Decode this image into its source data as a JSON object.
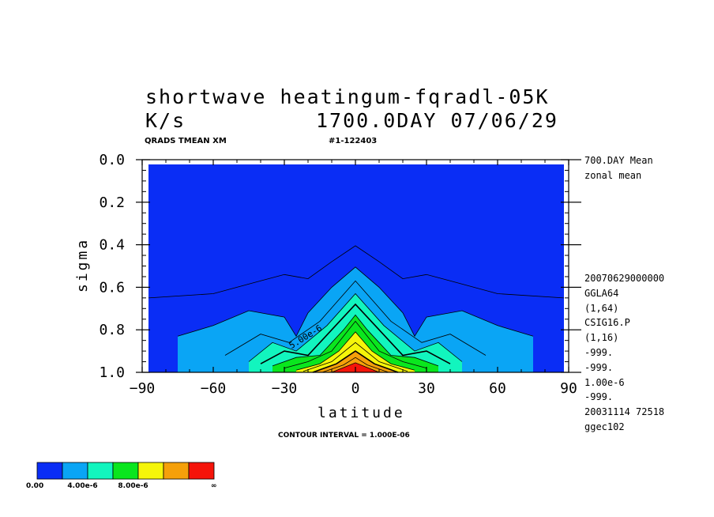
{
  "titles": {
    "line1": "shortwave heatingum-fqradl-05K",
    "line2_left": "K/s",
    "line2_right": "1700.0DAY 07/06/29",
    "sub_left": "QRADS TMEAN XM",
    "sub_right": "#1-122403"
  },
  "contour_interval": "CONTOUR INTERVAL = 1.000E-06",
  "right_info": {
    "top": [
      "700.DAY Mean",
      "zonal mean"
    ],
    "bottom": [
      "20070629000000",
      "GGLA64",
      "(1,64)",
      "CSIG16.P",
      "(1,16)",
      "-999.",
      "-999.",
      "1.00e-6",
      "-999.",
      "20031114  72518",
      "ggec102"
    ]
  },
  "colorbar": {
    "colors": [
      "#0a2df5",
      "#0aa5f5",
      "#12f5be",
      "#0ae61e",
      "#f5f50a",
      "#f5a00a",
      "#f5140a"
    ],
    "labels": [
      "0.00",
      "4.00e-6",
      "8.00e-6",
      "∞"
    ]
  },
  "chart_data": {
    "type": "contour",
    "title": "shortwave heatingum-fqradl-05K",
    "xlabel": "latitude",
    "ylabel": "sigma",
    "xlim": [
      -90,
      90
    ],
    "ylim": [
      1.0,
      0.0
    ],
    "xticks": [
      "−90",
      "−60",
      "−30",
      "0",
      "30",
      "60",
      "90"
    ],
    "yticks": [
      "0.0",
      "0.2",
      "0.4",
      "0.6",
      "0.8",
      "1.0"
    ],
    "contour_label": "5.00e-6",
    "levels": [
      {
        "value": 1e-06,
        "sigma_top": [
          [
            -90,
            0.65
          ],
          [
            -60,
            0.63
          ],
          [
            -40,
            0.57
          ],
          [
            -30,
            0.54
          ],
          [
            -20,
            0.56
          ],
          [
            -10,
            0.48
          ],
          [
            0,
            0.405
          ],
          [
            10,
            0.48
          ],
          [
            20,
            0.56
          ],
          [
            30,
            0.54
          ],
          [
            40,
            0.57
          ],
          [
            60,
            0.63
          ],
          [
            90,
            0.65
          ]
        ]
      },
      {
        "value": 2e-06,
        "sigma_top": [
          [
            -75,
            0.83
          ],
          [
            -60,
            0.78
          ],
          [
            -45,
            0.71
          ],
          [
            -30,
            0.74
          ],
          [
            -25,
            0.83
          ],
          [
            -20,
            0.72
          ],
          [
            -10,
            0.6
          ],
          [
            0,
            0.505
          ],
          [
            10,
            0.6
          ],
          [
            20,
            0.72
          ],
          [
            25,
            0.83
          ],
          [
            30,
            0.74
          ],
          [
            45,
            0.71
          ],
          [
            60,
            0.78
          ],
          [
            75,
            0.83
          ]
        ]
      },
      {
        "value": 3e-06,
        "sigma_top": [
          [
            -55,
            0.92
          ],
          [
            -40,
            0.82
          ],
          [
            -28,
            0.86
          ],
          [
            -15,
            0.76
          ],
          [
            0,
            0.57
          ],
          [
            15,
            0.76
          ],
          [
            28,
            0.86
          ],
          [
            40,
            0.82
          ],
          [
            55,
            0.92
          ]
        ]
      },
      {
        "value": 4e-06,
        "sigma_top": [
          [
            -45,
            0.95
          ],
          [
            -35,
            0.86
          ],
          [
            -25,
            0.9
          ],
          [
            -12,
            0.78
          ],
          [
            0,
            0.63
          ],
          [
            12,
            0.78
          ],
          [
            25,
            0.9
          ],
          [
            35,
            0.86
          ],
          [
            45,
            0.95
          ]
        ]
      },
      {
        "value": 5e-06,
        "sigma_top": [
          [
            -40,
            0.96
          ],
          [
            -30,
            0.9
          ],
          [
            -20,
            0.92
          ],
          [
            -10,
            0.8
          ],
          [
            0,
            0.68
          ],
          [
            10,
            0.8
          ],
          [
            20,
            0.92
          ],
          [
            30,
            0.9
          ],
          [
            40,
            0.96
          ]
        ]
      },
      {
        "value": 6e-06,
        "sigma_top": [
          [
            -35,
            0.97
          ],
          [
            -25,
            0.93
          ],
          [
            -15,
            0.92
          ],
          [
            -5,
            0.8
          ],
          [
            0,
            0.73
          ],
          [
            5,
            0.8
          ],
          [
            15,
            0.92
          ],
          [
            25,
            0.93
          ],
          [
            35,
            0.97
          ]
        ]
      },
      {
        "value": 7e-06,
        "sigma_top": [
          [
            -30,
            0.98
          ],
          [
            -20,
            0.95
          ],
          [
            -10,
            0.9
          ],
          [
            0,
            0.76
          ],
          [
            10,
            0.9
          ],
          [
            20,
            0.95
          ],
          [
            30,
            0.98
          ]
        ]
      },
      {
        "value": 8e-06,
        "sigma_top": [
          [
            -25,
            0.99
          ],
          [
            -15,
            0.96
          ],
          [
            -7,
            0.9
          ],
          [
            0,
            0.81
          ],
          [
            7,
            0.9
          ],
          [
            15,
            0.96
          ],
          [
            25,
            0.99
          ]
        ]
      },
      {
        "value": 9e-06,
        "sigma_top": [
          [
            -22,
            0.995
          ],
          [
            -10,
            0.95
          ],
          [
            0,
            0.86
          ],
          [
            10,
            0.95
          ],
          [
            22,
            0.995
          ]
        ]
      },
      {
        "value": 1e-05,
        "sigma_top": [
          [
            -18,
            1.0
          ],
          [
            -8,
            0.96
          ],
          [
            0,
            0.9
          ],
          [
            8,
            0.96
          ],
          [
            18,
            1.0
          ]
        ]
      },
      {
        "value": 1.1e-05,
        "sigma_top": [
          [
            -14,
            1.0
          ],
          [
            -5,
            0.965
          ],
          [
            0,
            0.93
          ],
          [
            5,
            0.965
          ],
          [
            14,
            1.0
          ]
        ]
      },
      {
        "value": 1.2e-05,
        "sigma_top": [
          [
            -10,
            1.0
          ],
          [
            0,
            0.955
          ],
          [
            10,
            1.0
          ]
        ]
      }
    ]
  }
}
